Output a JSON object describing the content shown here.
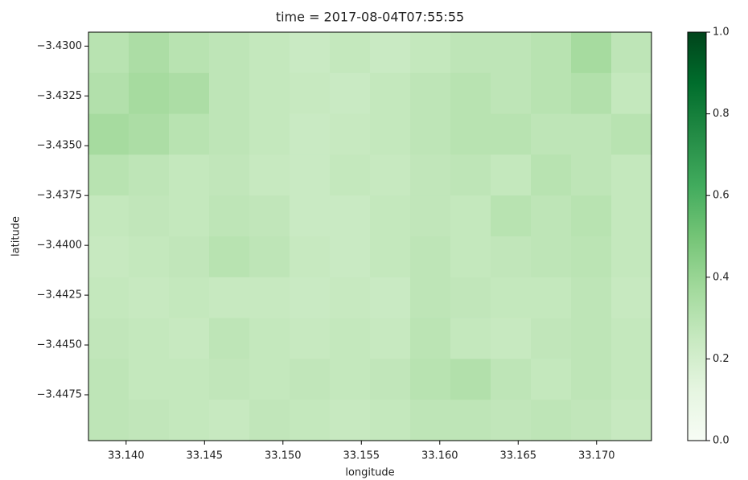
{
  "chart_data": {
    "type": "heatmap",
    "title": "time = 2017-08-04T07:55:55",
    "x_label": "longitude",
    "y_label": "latitude",
    "xlim": [
      33.1376,
      33.1735
    ],
    "ylim": [
      -3.4498,
      -3.4293
    ],
    "xticks": [
      {
        "value": 33.14,
        "label": "33.140"
      },
      {
        "value": 33.145,
        "label": "33.145"
      },
      {
        "value": 33.15,
        "label": "33.150"
      },
      {
        "value": 33.155,
        "label": "33.155"
      },
      {
        "value": 33.16,
        "label": "33.160"
      },
      {
        "value": 33.165,
        "label": "33.165"
      },
      {
        "value": 33.17,
        "label": "33.170"
      }
    ],
    "yticks": [
      {
        "value": -3.43,
        "label": "−3.4300"
      },
      {
        "value": -3.4325,
        "label": "−3.4325"
      },
      {
        "value": -3.435,
        "label": "−3.4350"
      },
      {
        "value": -3.4375,
        "label": "−3.4375"
      },
      {
        "value": -3.44,
        "label": "−3.4400"
      },
      {
        "value": -3.4425,
        "label": "−3.4425"
      },
      {
        "value": -3.445,
        "label": "−3.4450"
      },
      {
        "value": -3.4475,
        "label": "−3.4475"
      }
    ],
    "zlim": [
      0,
      1
    ],
    "zticks": [
      {
        "value": 0,
        "label": "0.0"
      },
      {
        "value": 0.2,
        "label": "0.2"
      },
      {
        "value": 0.4,
        "label": "0.4"
      },
      {
        "value": 0.6,
        "label": "0.6"
      },
      {
        "value": 0.8,
        "label": "0.8"
      },
      {
        "value": 1,
        "label": "1.0"
      }
    ],
    "colorscale": [
      "#f7fcf5",
      "#e5f5e0",
      "#c7e9c0",
      "#a1d99b",
      "#74c476",
      "#41ab5d",
      "#238b45",
      "#006d2c",
      "#00441b"
    ],
    "z": [
      [
        0.3,
        0.34,
        0.3,
        0.28,
        0.26,
        0.24,
        0.26,
        0.24,
        0.26,
        0.28,
        0.28,
        0.3,
        0.36,
        0.28
      ],
      [
        0.32,
        0.36,
        0.34,
        0.28,
        0.26,
        0.25,
        0.24,
        0.26,
        0.28,
        0.3,
        0.28,
        0.3,
        0.32,
        0.26
      ],
      [
        0.36,
        0.34,
        0.3,
        0.28,
        0.26,
        0.24,
        0.25,
        0.26,
        0.28,
        0.3,
        0.3,
        0.28,
        0.28,
        0.3
      ],
      [
        0.3,
        0.28,
        0.26,
        0.27,
        0.25,
        0.24,
        0.26,
        0.25,
        0.27,
        0.28,
        0.26,
        0.3,
        0.28,
        0.26
      ],
      [
        0.26,
        0.27,
        0.26,
        0.28,
        0.27,
        0.24,
        0.24,
        0.26,
        0.27,
        0.26,
        0.3,
        0.28,
        0.3,
        0.26
      ],
      [
        0.25,
        0.26,
        0.27,
        0.3,
        0.28,
        0.25,
        0.24,
        0.26,
        0.28,
        0.26,
        0.27,
        0.28,
        0.29,
        0.26
      ],
      [
        0.26,
        0.25,
        0.26,
        0.25,
        0.25,
        0.24,
        0.25,
        0.24,
        0.28,
        0.27,
        0.26,
        0.26,
        0.28,
        0.25
      ],
      [
        0.27,
        0.26,
        0.25,
        0.28,
        0.26,
        0.25,
        0.26,
        0.25,
        0.29,
        0.26,
        0.25,
        0.27,
        0.28,
        0.26
      ],
      [
        0.28,
        0.26,
        0.26,
        0.27,
        0.26,
        0.27,
        0.26,
        0.27,
        0.3,
        0.32,
        0.28,
        0.26,
        0.28,
        0.26
      ],
      [
        0.28,
        0.27,
        0.26,
        0.25,
        0.27,
        0.26,
        0.25,
        0.26,
        0.28,
        0.28,
        0.27,
        0.28,
        0.27,
        0.25
      ]
    ]
  }
}
